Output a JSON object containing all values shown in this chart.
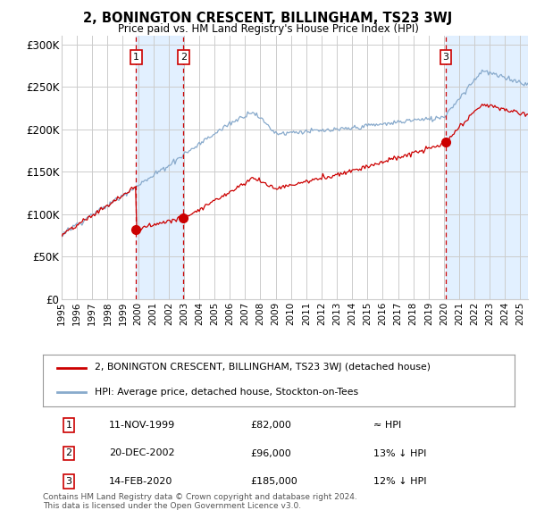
{
  "title": "2, BONINGTON CRESCENT, BILLINGHAM, TS23 3WJ",
  "subtitle": "Price paid vs. HM Land Registry's House Price Index (HPI)",
  "ylabel_ticks": [
    "£0",
    "£50K",
    "£100K",
    "£150K",
    "£200K",
    "£250K",
    "£300K"
  ],
  "ytick_values": [
    0,
    50000,
    100000,
    150000,
    200000,
    250000,
    300000
  ],
  "ylim": [
    0,
    310000
  ],
  "xlim_start": 1995.0,
  "xlim_end": 2025.5,
  "sale_dates": [
    1999.87,
    2002.97,
    2020.12
  ],
  "sale_prices": [
    82000,
    96000,
    185000
  ],
  "sale_labels": [
    "1",
    "2",
    "3"
  ],
  "legend_property": "2, BONINGTON CRESCENT, BILLINGHAM, TS23 3WJ (detached house)",
  "legend_hpi": "HPI: Average price, detached house, Stockton-on-Tees",
  "table_data": [
    [
      "1",
      "11-NOV-1999",
      "£82,000",
      "≈ HPI"
    ],
    [
      "2",
      "20-DEC-2002",
      "£96,000",
      "13% ↓ HPI"
    ],
    [
      "3",
      "14-FEB-2020",
      "£185,000",
      "12% ↓ HPI"
    ]
  ],
  "footnote": "Contains HM Land Registry data © Crown copyright and database right 2024.\nThis data is licensed under the Open Government Licence v3.0.",
  "property_line_color": "#cc0000",
  "hpi_line_color": "#88aacc",
  "shade_color": "#ddeeff",
  "vline_color": "#cc0000",
  "marker_color": "#cc0000",
  "box_edge_color": "#cc0000",
  "grid_color": "#cccccc",
  "background_color": "#ffffff"
}
